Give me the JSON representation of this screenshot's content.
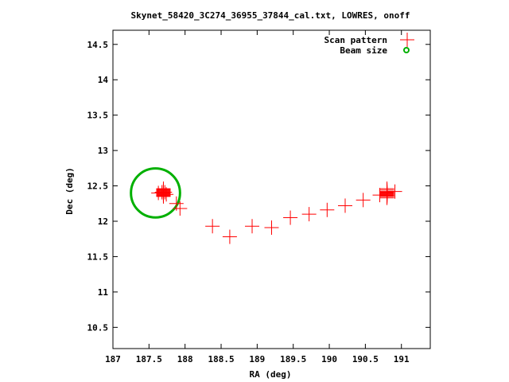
{
  "chart_data": {
    "type": "scatter",
    "title": "Skynet_58420_3C274_36955_37844_cal.txt, LOWRES, onoff",
    "xlabel": "RA (deg)",
    "ylabel": "Dec (deg)",
    "xlim": [
      187,
      191.4
    ],
    "ylim": [
      10.2,
      14.7
    ],
    "xticks": [
      "187",
      "187.5",
      "188",
      "188.5",
      "189",
      "189.5",
      "190",
      "190.5",
      "191"
    ],
    "yticks": [
      "10.5",
      "11",
      "11.5",
      "12",
      "12.5",
      "13",
      "13.5",
      "14",
      "14.5"
    ],
    "grid": false,
    "legend_position": "top-right",
    "series": [
      {
        "name": "Scan pattern",
        "marker": "plus",
        "color": "#ff0000",
        "points": [
          [
            187.7,
            12.37
          ],
          [
            187.7,
            12.38
          ],
          [
            187.7,
            12.39
          ],
          [
            187.7,
            12.4
          ],
          [
            187.7,
            12.41
          ],
          [
            187.7,
            12.42
          ],
          [
            187.7,
            12.43
          ],
          [
            187.7,
            12.44
          ],
          [
            187.7,
            12.45
          ],
          [
            187.7,
            12.46
          ],
          [
            187.7,
            12.36
          ],
          [
            187.7,
            12.35
          ],
          [
            187.68,
            12.41
          ],
          [
            187.72,
            12.41
          ],
          [
            187.63,
            12.4
          ],
          [
            187.74,
            12.38
          ],
          [
            187.88,
            12.25
          ],
          [
            187.93,
            12.18
          ],
          [
            188.38,
            11.93
          ],
          [
            188.62,
            11.78
          ],
          [
            188.93,
            11.93
          ],
          [
            189.2,
            11.91
          ],
          [
            189.46,
            12.05
          ],
          [
            189.72,
            12.1
          ],
          [
            189.97,
            12.16
          ],
          [
            190.22,
            12.22
          ],
          [
            190.47,
            12.3
          ],
          [
            190.7,
            12.37
          ],
          [
            190.8,
            12.38
          ],
          [
            190.91,
            12.42
          ],
          [
            190.8,
            12.33
          ],
          [
            190.8,
            12.35
          ],
          [
            190.8,
            12.36
          ],
          [
            190.8,
            12.37
          ],
          [
            190.8,
            12.39
          ],
          [
            190.8,
            12.4
          ],
          [
            190.8,
            12.41
          ],
          [
            190.8,
            12.42
          ],
          [
            190.8,
            12.44
          ],
          [
            190.8,
            12.46
          ]
        ]
      },
      {
        "name": "Beam size",
        "marker": "circle",
        "color": "#00b000",
        "center": [
          187.59,
          12.4
        ],
        "radius_deg": 0.34
      }
    ]
  }
}
